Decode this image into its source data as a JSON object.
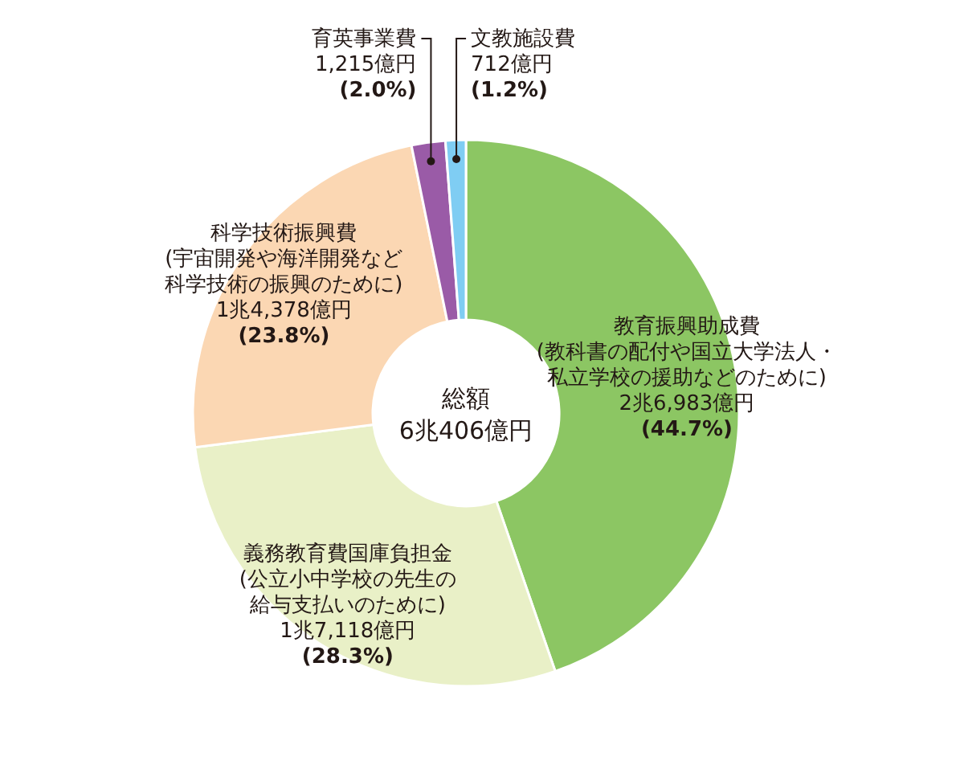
{
  "chart_data": {
    "type": "donut",
    "title": "総額",
    "subtitle": "6兆406億円",
    "categories": [
      "教育振興助成費",
      "義務教育費国庫負担金",
      "科学技術振興費",
      "育英事業費",
      "文教施設費"
    ],
    "annotations": [
      "2兆6,983億円",
      "1兆7,118億円",
      "1兆4,378億円",
      "1,215億円",
      "712億円",
      "(教科書の配付や国立大学法人・私立学校の援助などのために)",
      "(公立小中学校の先生の給与支払いのために)",
      "(宇宙開発や海洋開発など科学技術の振興のために)"
    ],
    "values": [
      44.7,
      28.3,
      23.8,
      2.0,
      1.2
    ],
    "value_labels": [
      "(44.7%)",
      "(28.3%)",
      "(23.8%)",
      "(2.0%)",
      "(1.2%)"
    ],
    "colors": [
      "#8cc663",
      "#e9f0c7",
      "#fbd7b3",
      "#9a5ba7",
      "#7fcdf3"
    ]
  }
}
